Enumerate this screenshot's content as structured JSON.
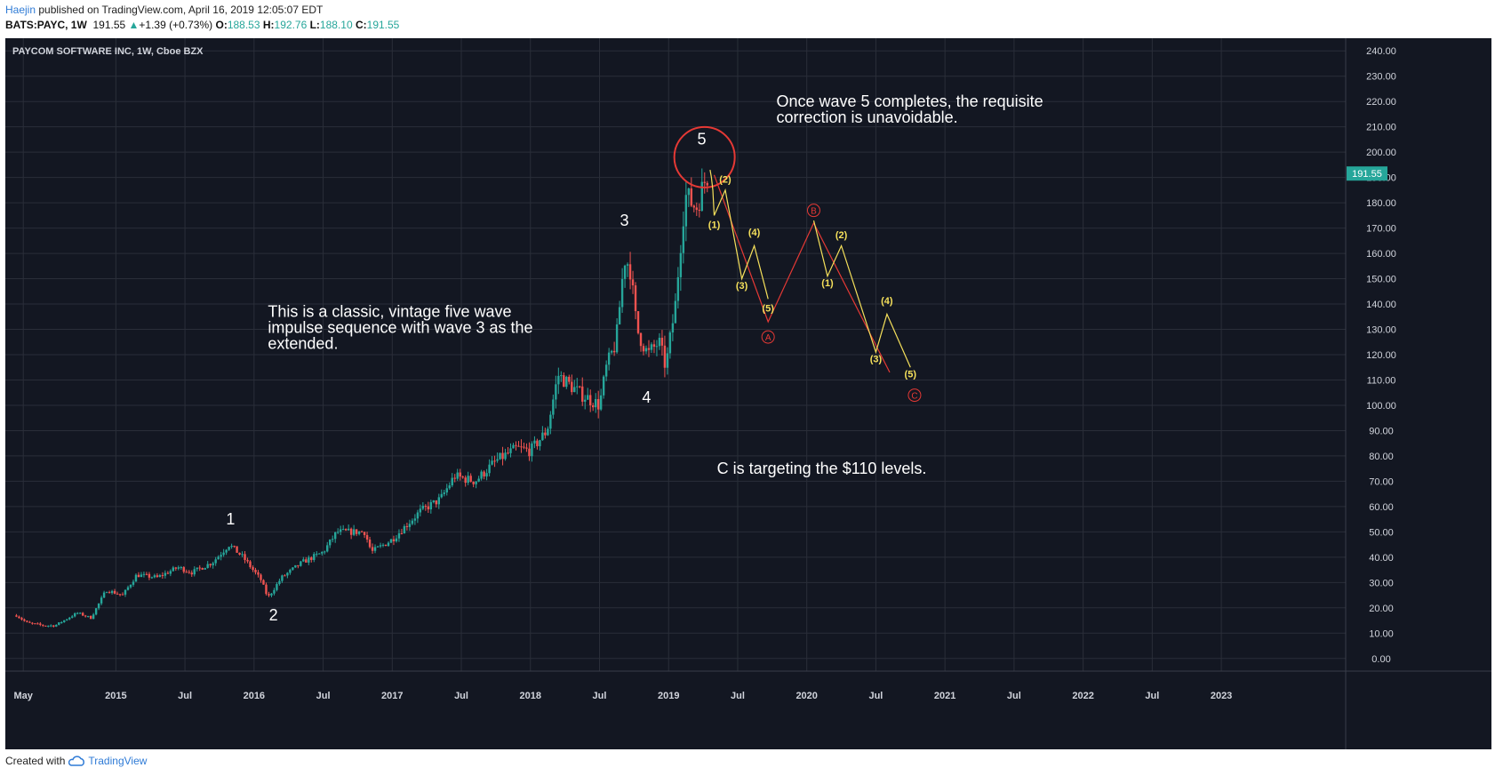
{
  "header": {
    "publisher": "Haejin",
    "published_text": "published on TradingView.com, April 16, 2019 12:05:07 EDT",
    "symbol": "BATS:PAYC, 1W",
    "last": "191.55",
    "change": "+1.39 (+0.73%)",
    "open_label": "O:",
    "open": "188.53",
    "high_label": "H:",
    "high": "192.76",
    "low_label": "L:",
    "low": "188.10",
    "close_label": "C:",
    "close": "191.55"
  },
  "footer": {
    "created_with": "Created with",
    "brand": "TradingView"
  },
  "colors": {
    "bg": "#131722",
    "grid": "#2a2e39",
    "up": "#26a69a",
    "down": "#ef5350",
    "text": "#ffffff",
    "axis_text": "#d1d4dc",
    "yellow": "#f5e05b",
    "red": "#e53935",
    "price_tag": "#26a69a"
  },
  "chart_data": {
    "type": "candlestick",
    "title": "PAYCOM SOFTWARE INC, 1W, Cboe BZX",
    "ylim": [
      -5,
      245
    ],
    "y_ticks": [
      "240.00",
      "230.00",
      "220.00",
      "210.00",
      "200.00",
      "190.00",
      "180.00",
      "170.00",
      "160.00",
      "150.00",
      "140.00",
      "130.00",
      "120.00",
      "110.00",
      "100.00",
      "90.00",
      "80.00",
      "70.00",
      "60.00",
      "50.00",
      "40.00",
      "30.00",
      "20.00",
      "10.00",
      "0.00"
    ],
    "x_range": [
      2014.2,
      2023.9
    ],
    "x_ticks": [
      {
        "t": 2014.33,
        "label": "May"
      },
      {
        "t": 2015.0,
        "label": "2015"
      },
      {
        "t": 2015.5,
        "label": "Jul"
      },
      {
        "t": 2016.0,
        "label": "2016"
      },
      {
        "t": 2016.5,
        "label": "Jul"
      },
      {
        "t": 2017.0,
        "label": "2017"
      },
      {
        "t": 2017.5,
        "label": "Jul"
      },
      {
        "t": 2018.0,
        "label": "2018"
      },
      {
        "t": 2018.5,
        "label": "Jul"
      },
      {
        "t": 2019.0,
        "label": "2019"
      },
      {
        "t": 2019.5,
        "label": "Jul"
      },
      {
        "t": 2020.0,
        "label": "2020"
      },
      {
        "t": 2020.5,
        "label": "Jul"
      },
      {
        "t": 2021.0,
        "label": "2021"
      },
      {
        "t": 2021.5,
        "label": "Jul"
      },
      {
        "t": 2022.0,
        "label": "2022"
      },
      {
        "t": 2022.5,
        "label": "Jul"
      },
      {
        "t": 2023.0,
        "label": "2023"
      }
    ],
    "price_path": [
      [
        2014.28,
        17
      ],
      [
        2014.36,
        14
      ],
      [
        2014.48,
        13
      ],
      [
        2014.56,
        13
      ],
      [
        2014.72,
        18
      ],
      [
        2014.82,
        16
      ],
      [
        2014.93,
        27
      ],
      [
        2015.05,
        25
      ],
      [
        2015.15,
        33
      ],
      [
        2015.3,
        32
      ],
      [
        2015.45,
        36
      ],
      [
        2015.55,
        34
      ],
      [
        2015.7,
        38
      ],
      [
        2015.82,
        45
      ],
      [
        2015.92,
        40
      ],
      [
        2016.05,
        31
      ],
      [
        2016.1,
        24
      ],
      [
        2016.2,
        32
      ],
      [
        2016.35,
        38
      ],
      [
        2016.5,
        42
      ],
      [
        2016.6,
        50
      ],
      [
        2016.8,
        50
      ],
      [
        2016.85,
        42
      ],
      [
        2017.0,
        47
      ],
      [
        2017.2,
        58
      ],
      [
        2017.35,
        63
      ],
      [
        2017.45,
        72
      ],
      [
        2017.6,
        70
      ],
      [
        2017.75,
        78
      ],
      [
        2017.9,
        83
      ],
      [
        2018.0,
        82
      ],
      [
        2018.12,
        90
      ],
      [
        2018.2,
        112
      ],
      [
        2018.35,
        105
      ],
      [
        2018.5,
        100
      ],
      [
        2018.55,
        115
      ],
      [
        2018.62,
        125
      ],
      [
        2018.68,
        158
      ],
      [
        2018.72,
        155
      ],
      [
        2018.77,
        130
      ],
      [
        2018.85,
        120
      ],
      [
        2018.93,
        125
      ],
      [
        2018.98,
        115
      ],
      [
        2019.05,
        140
      ],
      [
        2019.08,
        160
      ],
      [
        2019.12,
        183
      ],
      [
        2019.2,
        178
      ],
      [
        2019.27,
        190
      ],
      [
        2019.29,
        191.55
      ]
    ],
    "last_price": "191.55",
    "annotations": [
      {
        "text": "1",
        "t": 2015.83,
        "p": 53
      },
      {
        "text": "2",
        "t": 2016.14,
        "p": 15
      },
      {
        "text": "3",
        "t": 2018.68,
        "p": 171
      },
      {
        "text": "4",
        "t": 2018.84,
        "p": 101
      },
      {
        "text": "5",
        "t": 2019.24,
        "p": 203
      }
    ],
    "notes": [
      {
        "lines": [
          "This is a classic, vintage five wave",
          "impulse sequence with wave 3 as the",
          "extended."
        ],
        "t": 2016.1,
        "p": 135
      },
      {
        "lines": [
          "Once wave 5 completes, the requisite",
          "correction is unavoidable."
        ],
        "t": 2019.78,
        "p": 218
      },
      {
        "text": "C is targeting the $110 levels.",
        "t": 2019.35,
        "p": 73
      }
    ],
    "yellow_path": [
      [
        2019.3,
        193
      ],
      [
        2019.31,
        190
      ],
      [
        2019.32,
        185
      ],
      [
        2019.33,
        175
      ],
      [
        2019.41,
        185
      ],
      [
        2019.53,
        150
      ],
      [
        2019.62,
        163
      ],
      [
        2019.72,
        142
      ]
    ],
    "red_path": [
      [
        2019.33,
        191
      ],
      [
        2019.72,
        133
      ],
      [
        2020.05,
        172
      ],
      [
        2020.6,
        113
      ]
    ],
    "yellow_path2": [
      [
        2020.05,
        173
      ],
      [
        2020.15,
        151
      ],
      [
        2020.25,
        163
      ],
      [
        2020.5,
        121
      ],
      [
        2020.58,
        136
      ],
      [
        2020.75,
        115
      ]
    ],
    "yellow_labels": [
      {
        "text": "(2)",
        "t": 2019.41,
        "p": 188
      },
      {
        "text": "(1)",
        "t": 2019.33,
        "p": 170
      },
      {
        "text": "(4)",
        "t": 2019.62,
        "p": 167
      },
      {
        "text": "(3)",
        "t": 2019.53,
        "p": 146
      },
      {
        "text": "(5)",
        "t": 2019.72,
        "p": 137
      },
      {
        "text": "(2)",
        "t": 2020.25,
        "p": 166
      },
      {
        "text": "(1)",
        "t": 2020.15,
        "p": 147
      },
      {
        "text": "(4)",
        "t": 2020.58,
        "p": 140
      },
      {
        "text": "(3)",
        "t": 2020.5,
        "p": 117
      },
      {
        "text": "(5)",
        "t": 2020.75,
        "p": 111
      }
    ],
    "circled_labels": [
      {
        "text": "A",
        "t": 2019.72,
        "p": 127
      },
      {
        "text": "B",
        "t": 2020.05,
        "p": 177
      },
      {
        "text": "C",
        "t": 2020.78,
        "p": 104
      }
    ],
    "highlight_circle": {
      "t": 2019.26,
      "p": 198
    }
  }
}
